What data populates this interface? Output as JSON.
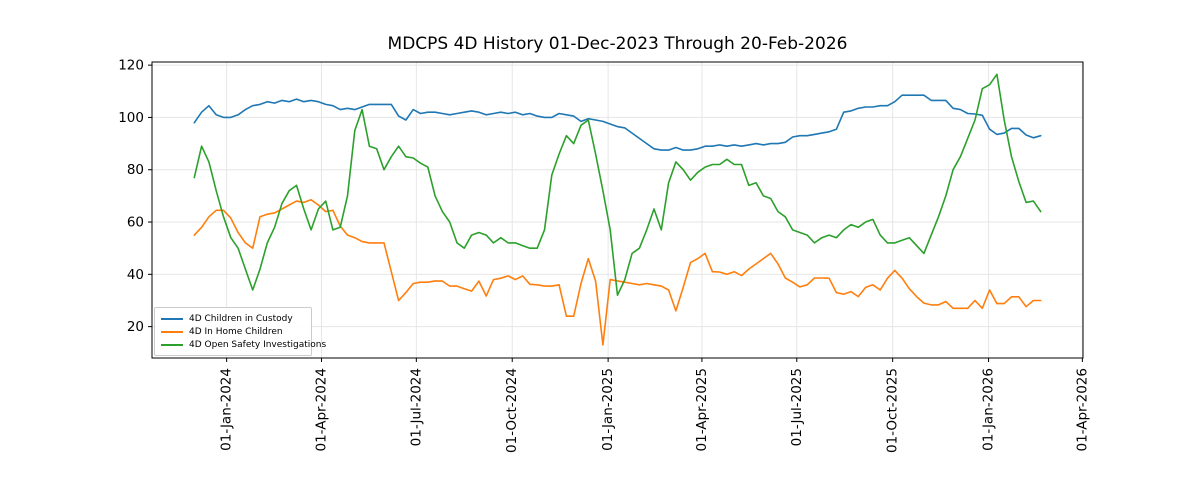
{
  "chart_data": {
    "type": "line",
    "title": "MDCPS 4D History 01-Dec-2023 Through 20-Feb-2026",
    "xlabel": "",
    "ylabel": "",
    "grid": true,
    "legend_position": "lower-left",
    "background": "#ffffff",
    "grid_color": "#e6e6e6",
    "spine_color": "#000000",
    "x_start_date": "01-Dec-2023",
    "x_end_date": "20-Feb-2026",
    "x_sample_step_days": 7,
    "xlim_days": [
      -40.6,
      852.6
    ],
    "ylim": [
      8,
      121.2
    ],
    "y_ticks": [
      20,
      40,
      60,
      80,
      100,
      120
    ],
    "x_ticks": [
      {
        "label": "01-Jan-2024",
        "day": 31
      },
      {
        "label": "01-Apr-2024",
        "day": 122
      },
      {
        "label": "01-Jul-2024",
        "day": 213
      },
      {
        "label": "01-Oct-2024",
        "day": 305
      },
      {
        "label": "01-Jan-2025",
        "day": 397
      },
      {
        "label": "01-Apr-2025",
        "day": 487
      },
      {
        "label": "01-Jul-2025",
        "day": 578
      },
      {
        "label": "01-Oct-2025",
        "day": 670
      },
      {
        "label": "01-Jan-2026",
        "day": 762
      },
      {
        "label": "01-Apr-2026",
        "day": 852
      }
    ],
    "series": [
      {
        "name": "4D Children in Custody",
        "color": "#1f77b4",
        "values": [
          98,
          102,
          104.5,
          101,
          100,
          100,
          101,
          103,
          104.5,
          105,
          106,
          105.5,
          106.5,
          106,
          107,
          106,
          106.5,
          106,
          105,
          104.5,
          103,
          103.5,
          103,
          104,
          105,
          105,
          105,
          105,
          100.5,
          99,
          103,
          101.5,
          102,
          102,
          101.5,
          101,
          101.5,
          102,
          102.5,
          102,
          101,
          101.5,
          102,
          101.5,
          102,
          101,
          101.5,
          100.5,
          100,
          100,
          101.5,
          101,
          100.5,
          98.5,
          99.5,
          99,
          98.5,
          97.5,
          96.5,
          96,
          94,
          92,
          90,
          88,
          87.5,
          87.5,
          88.5,
          87.5,
          87.5,
          88,
          89,
          89,
          89.5,
          89,
          89.5,
          89,
          89.5,
          90,
          89.5,
          90,
          90,
          90.5,
          92.5,
          93,
          93,
          93.5,
          94,
          94.5,
          95.5,
          102,
          102.5,
          103.5,
          104,
          104,
          104.5,
          104.5,
          106,
          108.5,
          108.5,
          108.5,
          108.5,
          106.5,
          106.5,
          106.5,
          103.5,
          103,
          101.5,
          101.3,
          100.8,
          95.5,
          93.5,
          94,
          95.8,
          95.8,
          93.3,
          92.2,
          93
        ]
      },
      {
        "name": "4D In Home Children",
        "color": "#ff7f0e",
        "values": [
          55,
          58,
          62,
          64.5,
          64.5,
          61.5,
          56,
          52,
          50,
          62,
          63,
          63.5,
          65,
          66.5,
          68,
          67.5,
          68.5,
          66.5,
          64,
          64.5,
          58.5,
          55,
          54,
          52.5,
          52,
          52,
          52,
          41,
          30,
          33,
          36.5,
          37,
          37,
          37.5,
          37.4,
          35.5,
          35.5,
          34.5,
          33.6,
          37.4,
          31.7,
          38,
          38.5,
          39.4,
          38,
          39.4,
          36.2,
          36,
          35.5,
          35.5,
          36,
          24,
          24,
          36.5,
          46,
          37.4,
          13,
          38,
          37.5,
          37,
          36.5,
          36,
          36.5,
          36,
          35.5,
          34,
          26,
          35,
          44.5,
          46,
          48,
          41,
          40.9,
          40,
          41,
          39.5,
          42,
          44,
          46,
          48,
          44,
          38.6,
          37,
          35.2,
          36,
          38.6,
          38.6,
          38.5,
          33,
          32.4,
          33.4,
          31.5,
          35,
          36,
          34,
          38.5,
          41.5,
          38.5,
          34.5,
          31.5,
          29,
          28.3,
          28.3,
          29.6,
          27,
          27,
          27,
          30,
          27,
          34,
          28.8,
          28.8,
          31.4,
          31.4,
          27.6,
          30,
          30
        ]
      },
      {
        "name": "4D Open Safety Investigations",
        "color": "#2ca02c",
        "values": [
          77,
          89,
          83,
          72,
          62,
          54,
          50,
          42,
          34,
          42,
          52,
          58,
          67,
          72,
          74,
          65,
          57,
          65,
          68,
          57,
          58,
          70,
          95,
          103,
          89,
          88,
          80,
          85,
          89,
          85,
          84.5,
          82.5,
          81,
          70,
          64,
          60,
          52,
          50,
          55,
          56,
          55,
          52,
          54,
          52,
          52,
          51,
          50,
          50,
          57,
          78,
          86,
          93,
          90,
          97,
          99,
          86,
          72,
          57,
          32,
          38,
          48,
          50,
          57,
          65,
          57,
          75,
          83,
          80,
          76,
          79,
          81,
          82,
          82,
          84,
          82,
          82,
          74,
          75,
          70,
          69,
          64,
          62,
          57,
          56,
          55,
          52,
          54,
          55,
          54,
          57,
          59,
          58,
          60,
          61,
          55,
          52,
          52,
          53,
          54,
          51,
          48,
          55,
          62,
          70,
          80,
          85,
          92,
          99,
          111,
          112.5,
          116.5,
          99,
          85,
          75.5,
          67.5,
          68,
          64
        ]
      }
    ]
  }
}
